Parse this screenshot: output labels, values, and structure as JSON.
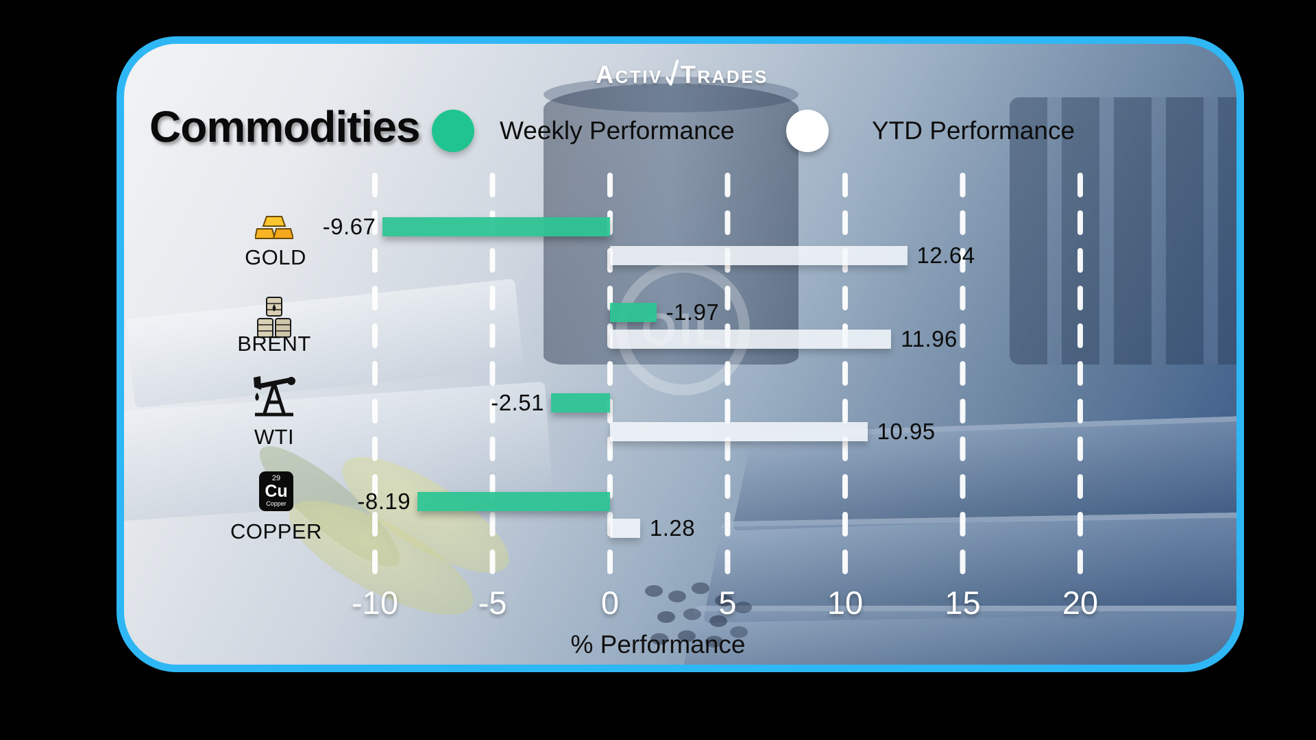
{
  "brand": {
    "logo_text_1": "Activ",
    "logo_text_2": "Trades"
  },
  "header": {
    "title": "Commodities"
  },
  "legend": {
    "weekly": {
      "label": "Weekly Performance",
      "color": "#2bc492"
    },
    "ytd": {
      "label": "YTD Performance",
      "color": "#ffffff"
    }
  },
  "watermark": {
    "text": "OIL"
  },
  "copper_tile": {
    "atomic_number": "29",
    "symbol": "Cu",
    "name": "Copper"
  },
  "chart_data": {
    "type": "bar",
    "orientation": "horizontal",
    "title": "Commodities",
    "xlabel": "% Performance",
    "x_ticks": [
      -10,
      -5,
      0,
      5,
      10,
      15,
      20
    ],
    "xlim": [
      -13,
      23
    ],
    "grid": "vertical-dashed-white",
    "legend_position": "top",
    "categories": [
      "GOLD",
      "BRENT",
      "WTI",
      "COPPER"
    ],
    "category_icons": [
      "gold-bars-icon",
      "oil-barrels-icon",
      "oil-pumpjack-icon",
      "copper-element-icon"
    ],
    "series": [
      {
        "name": "Weekly Performance",
        "color": "#2bc492",
        "values": [
          -9.67,
          -1.97,
          -2.51,
          -8.19
        ]
      },
      {
        "name": "YTD Performance",
        "color": "#f2f5f8",
        "values": [
          12.64,
          11.96,
          10.95,
          1.28
        ]
      }
    ],
    "weekly_bar_side": [
      "left",
      "right",
      "left",
      "left"
    ],
    "value_label_decimals": 2
  }
}
